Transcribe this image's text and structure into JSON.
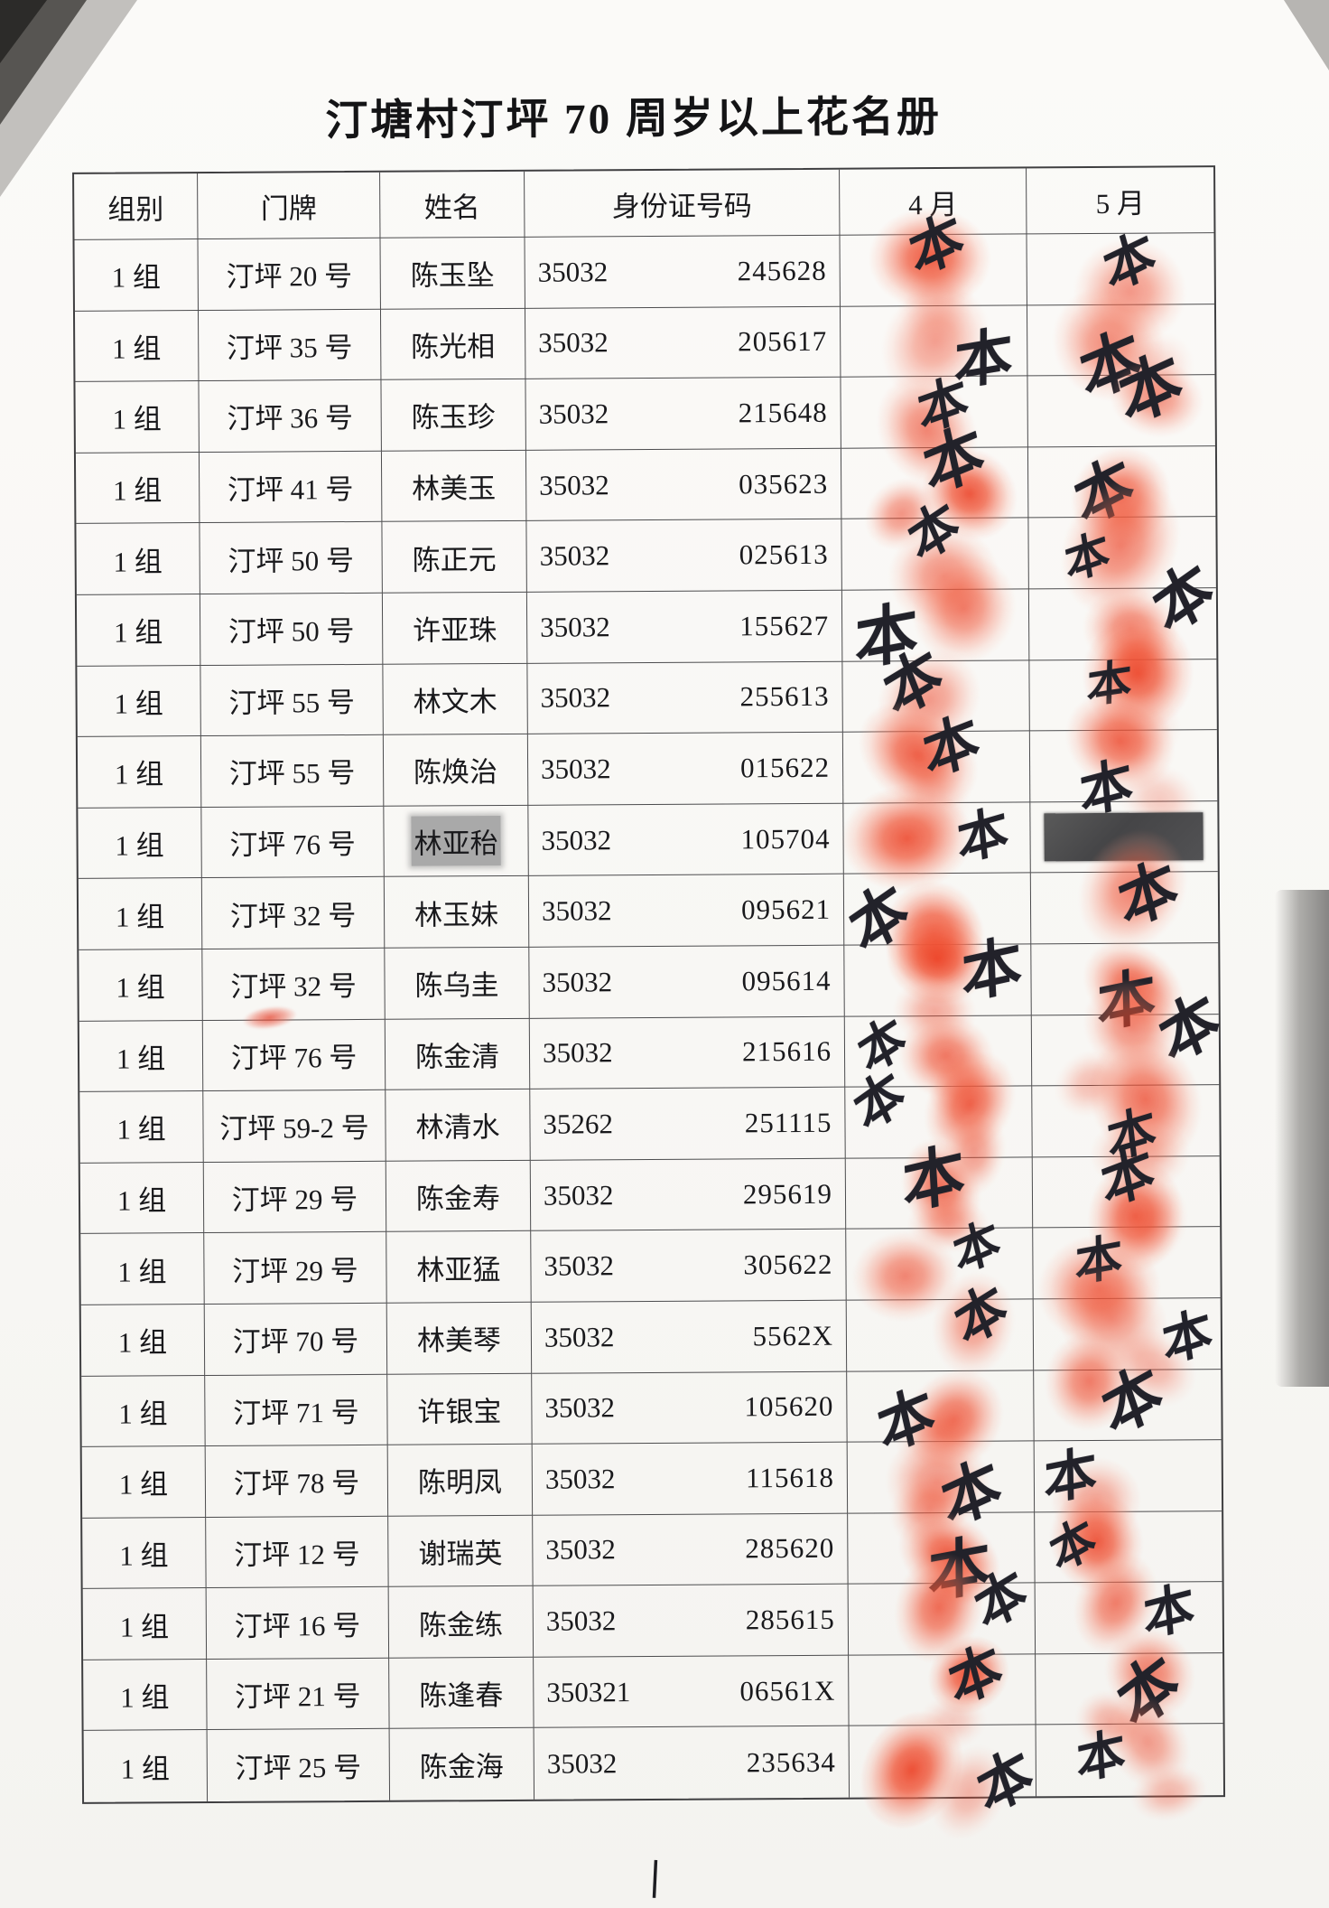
{
  "page": {
    "title": "汀塘村汀坪 70 周岁以上花名册",
    "footer_mark": "|"
  },
  "table": {
    "headers": {
      "group": "组别",
      "house": "门牌",
      "name": "姓名",
      "id": "身份证号码",
      "april": "4 月",
      "may": "5 月"
    },
    "rows": [
      {
        "group": "1 组",
        "house": "汀坪 20 号",
        "name": "陈玉坠",
        "id_prefix": "35032",
        "id_suffix": "245628",
        "april": {
          "fingerprint": true,
          "signature": true
        },
        "may": {
          "fingerprint": true,
          "signature": true
        }
      },
      {
        "group": "1 组",
        "house": "汀坪 35 号",
        "name": "陈光相",
        "id_prefix": "35032",
        "id_suffix": "205617",
        "april": {
          "fingerprint": true,
          "signature": true
        },
        "may": {
          "fingerprint": true,
          "signature": true
        }
      },
      {
        "group": "1 组",
        "house": "汀坪 36 号",
        "name": "陈玉珍",
        "id_prefix": "35032",
        "id_suffix": "215648",
        "april": {
          "fingerprint": true,
          "signature": true
        },
        "may": {
          "fingerprint": true,
          "signature": true
        }
      },
      {
        "group": "1 组",
        "house": "汀坪 41 号",
        "name": "林美玉",
        "id_prefix": "35032",
        "id_suffix": "035623",
        "april": {
          "fingerprint": true,
          "signature": true
        },
        "may": {
          "fingerprint": true,
          "signature": true
        }
      },
      {
        "group": "1 组",
        "house": "汀坪 50 号",
        "name": "陈正元",
        "id_prefix": "35032",
        "id_suffix": "025613",
        "april": {
          "fingerprint": true,
          "signature": true
        },
        "may": {
          "fingerprint": true,
          "signature": true
        }
      },
      {
        "group": "1 组",
        "house": "汀坪 50 号",
        "name": "许亚珠",
        "id_prefix": "35032",
        "id_suffix": "155627",
        "april": {
          "fingerprint": true,
          "signature": true
        },
        "may": {
          "fingerprint": true,
          "signature": true
        }
      },
      {
        "group": "1 组",
        "house": "汀坪 55 号",
        "name": "林文木",
        "id_prefix": "35032",
        "id_suffix": "255613",
        "april": {
          "fingerprint": true,
          "signature": true
        },
        "may": {
          "fingerprint": true,
          "signature": true
        }
      },
      {
        "group": "1 组",
        "house": "汀坪 55 号",
        "name": "陈焕治",
        "id_prefix": "35032",
        "id_suffix": "015622",
        "april": {
          "fingerprint": true,
          "signature": true
        },
        "may": {
          "fingerprint": true,
          "signature": true
        }
      },
      {
        "group": "1 组",
        "house": "汀坪 76 号",
        "name": "林亚秮",
        "name_highlighted": true,
        "id_prefix": "35032",
        "id_suffix": "105704",
        "april": {
          "fingerprint": true,
          "signature": true
        },
        "may": {
          "fingerprint": false,
          "signature": false,
          "redacted": true
        }
      },
      {
        "group": "1 组",
        "house": "汀坪 32 号",
        "name": "林玉妹",
        "id_prefix": "35032",
        "id_suffix": "095621",
        "april": {
          "fingerprint": true,
          "signature": true
        },
        "may": {
          "fingerprint": true,
          "signature": true
        }
      },
      {
        "group": "1 组",
        "house": "汀坪 32 号",
        "name": "陈乌圭",
        "house_smudge": true,
        "id_prefix": "35032",
        "id_suffix": "095614",
        "april": {
          "fingerprint": true,
          "signature": true
        },
        "may": {
          "fingerprint": true,
          "signature": true
        }
      },
      {
        "group": "1 组",
        "house": "汀坪 76 号",
        "name": "陈金清",
        "id_prefix": "35032",
        "id_suffix": "215616",
        "april": {
          "fingerprint": true,
          "signature": true
        },
        "may": {
          "fingerprint": true,
          "signature": true
        }
      },
      {
        "group": "1 组",
        "house": "汀坪 59-2 号",
        "name": "林清水",
        "id_prefix": "35262",
        "id_suffix": "251115",
        "april": {
          "fingerprint": true,
          "signature": true
        },
        "may": {
          "fingerprint": true,
          "signature": true
        }
      },
      {
        "group": "1 组",
        "house": "汀坪 29 号",
        "name": "陈金寿",
        "id_prefix": "35032",
        "id_suffix": "295619",
        "april": {
          "fingerprint": true,
          "signature": true
        },
        "may": {
          "fingerprint": true,
          "signature": true
        }
      },
      {
        "group": "1 组",
        "house": "汀坪 29 号",
        "name": "林亚猛",
        "id_prefix": "35032",
        "id_suffix": "305622",
        "april": {
          "fingerprint": true,
          "signature": true
        },
        "may": {
          "fingerprint": true,
          "signature": true
        }
      },
      {
        "group": "1 组",
        "house": "汀坪 70 号",
        "name": "林美琴",
        "id_prefix": "35032",
        "id_suffix": "5562X",
        "april": {
          "fingerprint": true,
          "signature": true
        },
        "may": {
          "fingerprint": true,
          "signature": true
        }
      },
      {
        "group": "1 组",
        "house": "汀坪 71 号",
        "name": "许银宝",
        "id_prefix": "35032",
        "id_suffix": "105620",
        "april": {
          "fingerprint": true,
          "signature": true
        },
        "may": {
          "fingerprint": true,
          "signature": true
        }
      },
      {
        "group": "1 组",
        "house": "汀坪 78 号",
        "name": "陈明凤",
        "id_prefix": "35032",
        "id_suffix": "115618",
        "april": {
          "fingerprint": true,
          "signature": true
        },
        "may": {
          "fingerprint": true,
          "signature": true
        }
      },
      {
        "group": "1 组",
        "house": "汀坪 12 号",
        "name": "谢瑞英",
        "id_prefix": "35032",
        "id_suffix": "285620",
        "april": {
          "fingerprint": true,
          "signature": true
        },
        "may": {
          "fingerprint": true,
          "signature": true
        }
      },
      {
        "group": "1 组",
        "house": "汀坪 16 号",
        "name": "陈金练",
        "id_prefix": "35032",
        "id_suffix": "285615",
        "april": {
          "fingerprint": true,
          "signature": true
        },
        "may": {
          "fingerprint": true,
          "signature": true
        }
      },
      {
        "group": "1 组",
        "house": "汀坪 21 号",
        "name": "陈逢春",
        "id_prefix": "350321",
        "id_suffix": "06561X",
        "april": {
          "fingerprint": true,
          "signature": true
        },
        "may": {
          "fingerprint": true,
          "signature": true
        }
      },
      {
        "group": "1 组",
        "house": "汀坪 25 号",
        "name": "陈金海",
        "id_prefix": "35032",
        "id_suffix": "235634",
        "april": {
          "fingerprint": true,
          "signature": true
        },
        "may": {
          "fingerprint": true,
          "signature": true
        }
      }
    ]
  },
  "marks": {
    "signature_glyph": "本",
    "fingerprint_color": "#ec4226",
    "ink_color": "#22222a",
    "highlight_color": "#a9a9a9",
    "redaction_color": "#4b4b4d"
  }
}
